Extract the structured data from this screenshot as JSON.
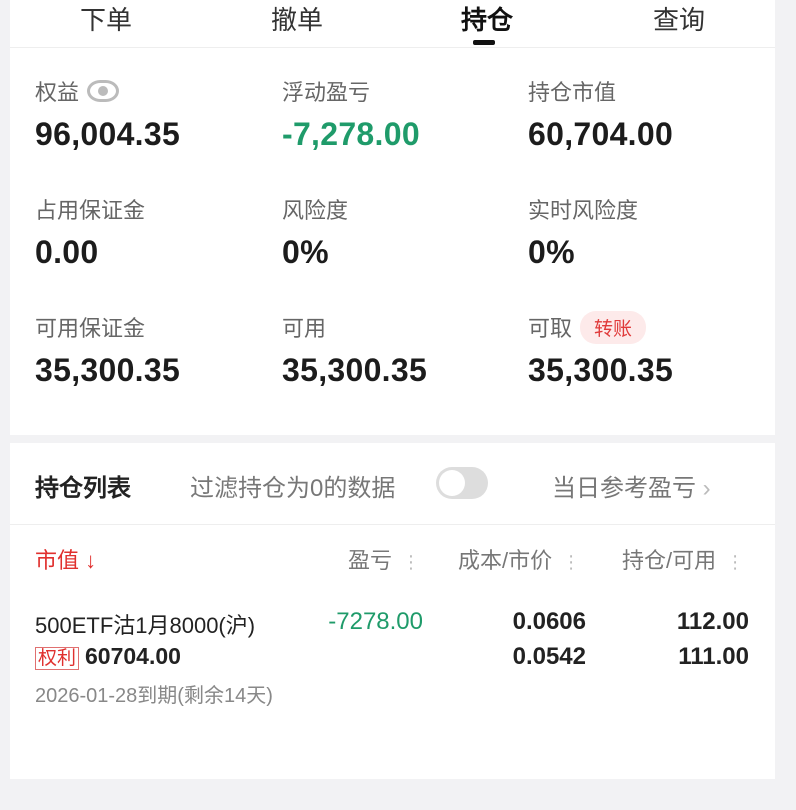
{
  "tabs": [
    {
      "label": "下单"
    },
    {
      "label": "撤单"
    },
    {
      "label": "持仓",
      "active": true
    },
    {
      "label": "查询"
    }
  ],
  "account": {
    "equity": {
      "label": "权益",
      "value": "96,004.35"
    },
    "floating_pnl": {
      "label": "浮动盈亏",
      "value": "-7,278.00"
    },
    "position_value": {
      "label": "持仓市值",
      "value": "60,704.00"
    },
    "used_margin": {
      "label": "占用保证金",
      "value": "0.00"
    },
    "risk": {
      "label": "风险度",
      "value": "0%"
    },
    "realtime_risk": {
      "label": "实时风险度",
      "value": "0%"
    },
    "available_margin": {
      "label": "可用保证金",
      "value": "35,300.35"
    },
    "available": {
      "label": "可用",
      "value": "35,300.35"
    },
    "withdrawable": {
      "label": "可取",
      "value": "35,300.35",
      "transfer_label": "转账"
    }
  },
  "positions": {
    "title": "持仓列表",
    "filter_label": "过滤持仓为0的数据",
    "filter_on": false,
    "ref_pnl_label": "当日参考盈亏",
    "columns": {
      "market_value": "市值",
      "pnl": "盈亏",
      "cost_price": "成本/市价",
      "holding": "持仓/可用"
    },
    "rows": [
      {
        "name": "500ETF沽1月8000(沪)",
        "tag": "权利",
        "market_value": "60704.00",
        "pnl": "-7278.00",
        "cost": "0.0606",
        "price": "0.0542",
        "holding": "112.00",
        "available": "111.00",
        "expiry": "2026-01-28到期(剩余14天)"
      }
    ]
  },
  "colors": {
    "positive_down": "#1f9b6a",
    "accent_red": "#e0302e"
  }
}
